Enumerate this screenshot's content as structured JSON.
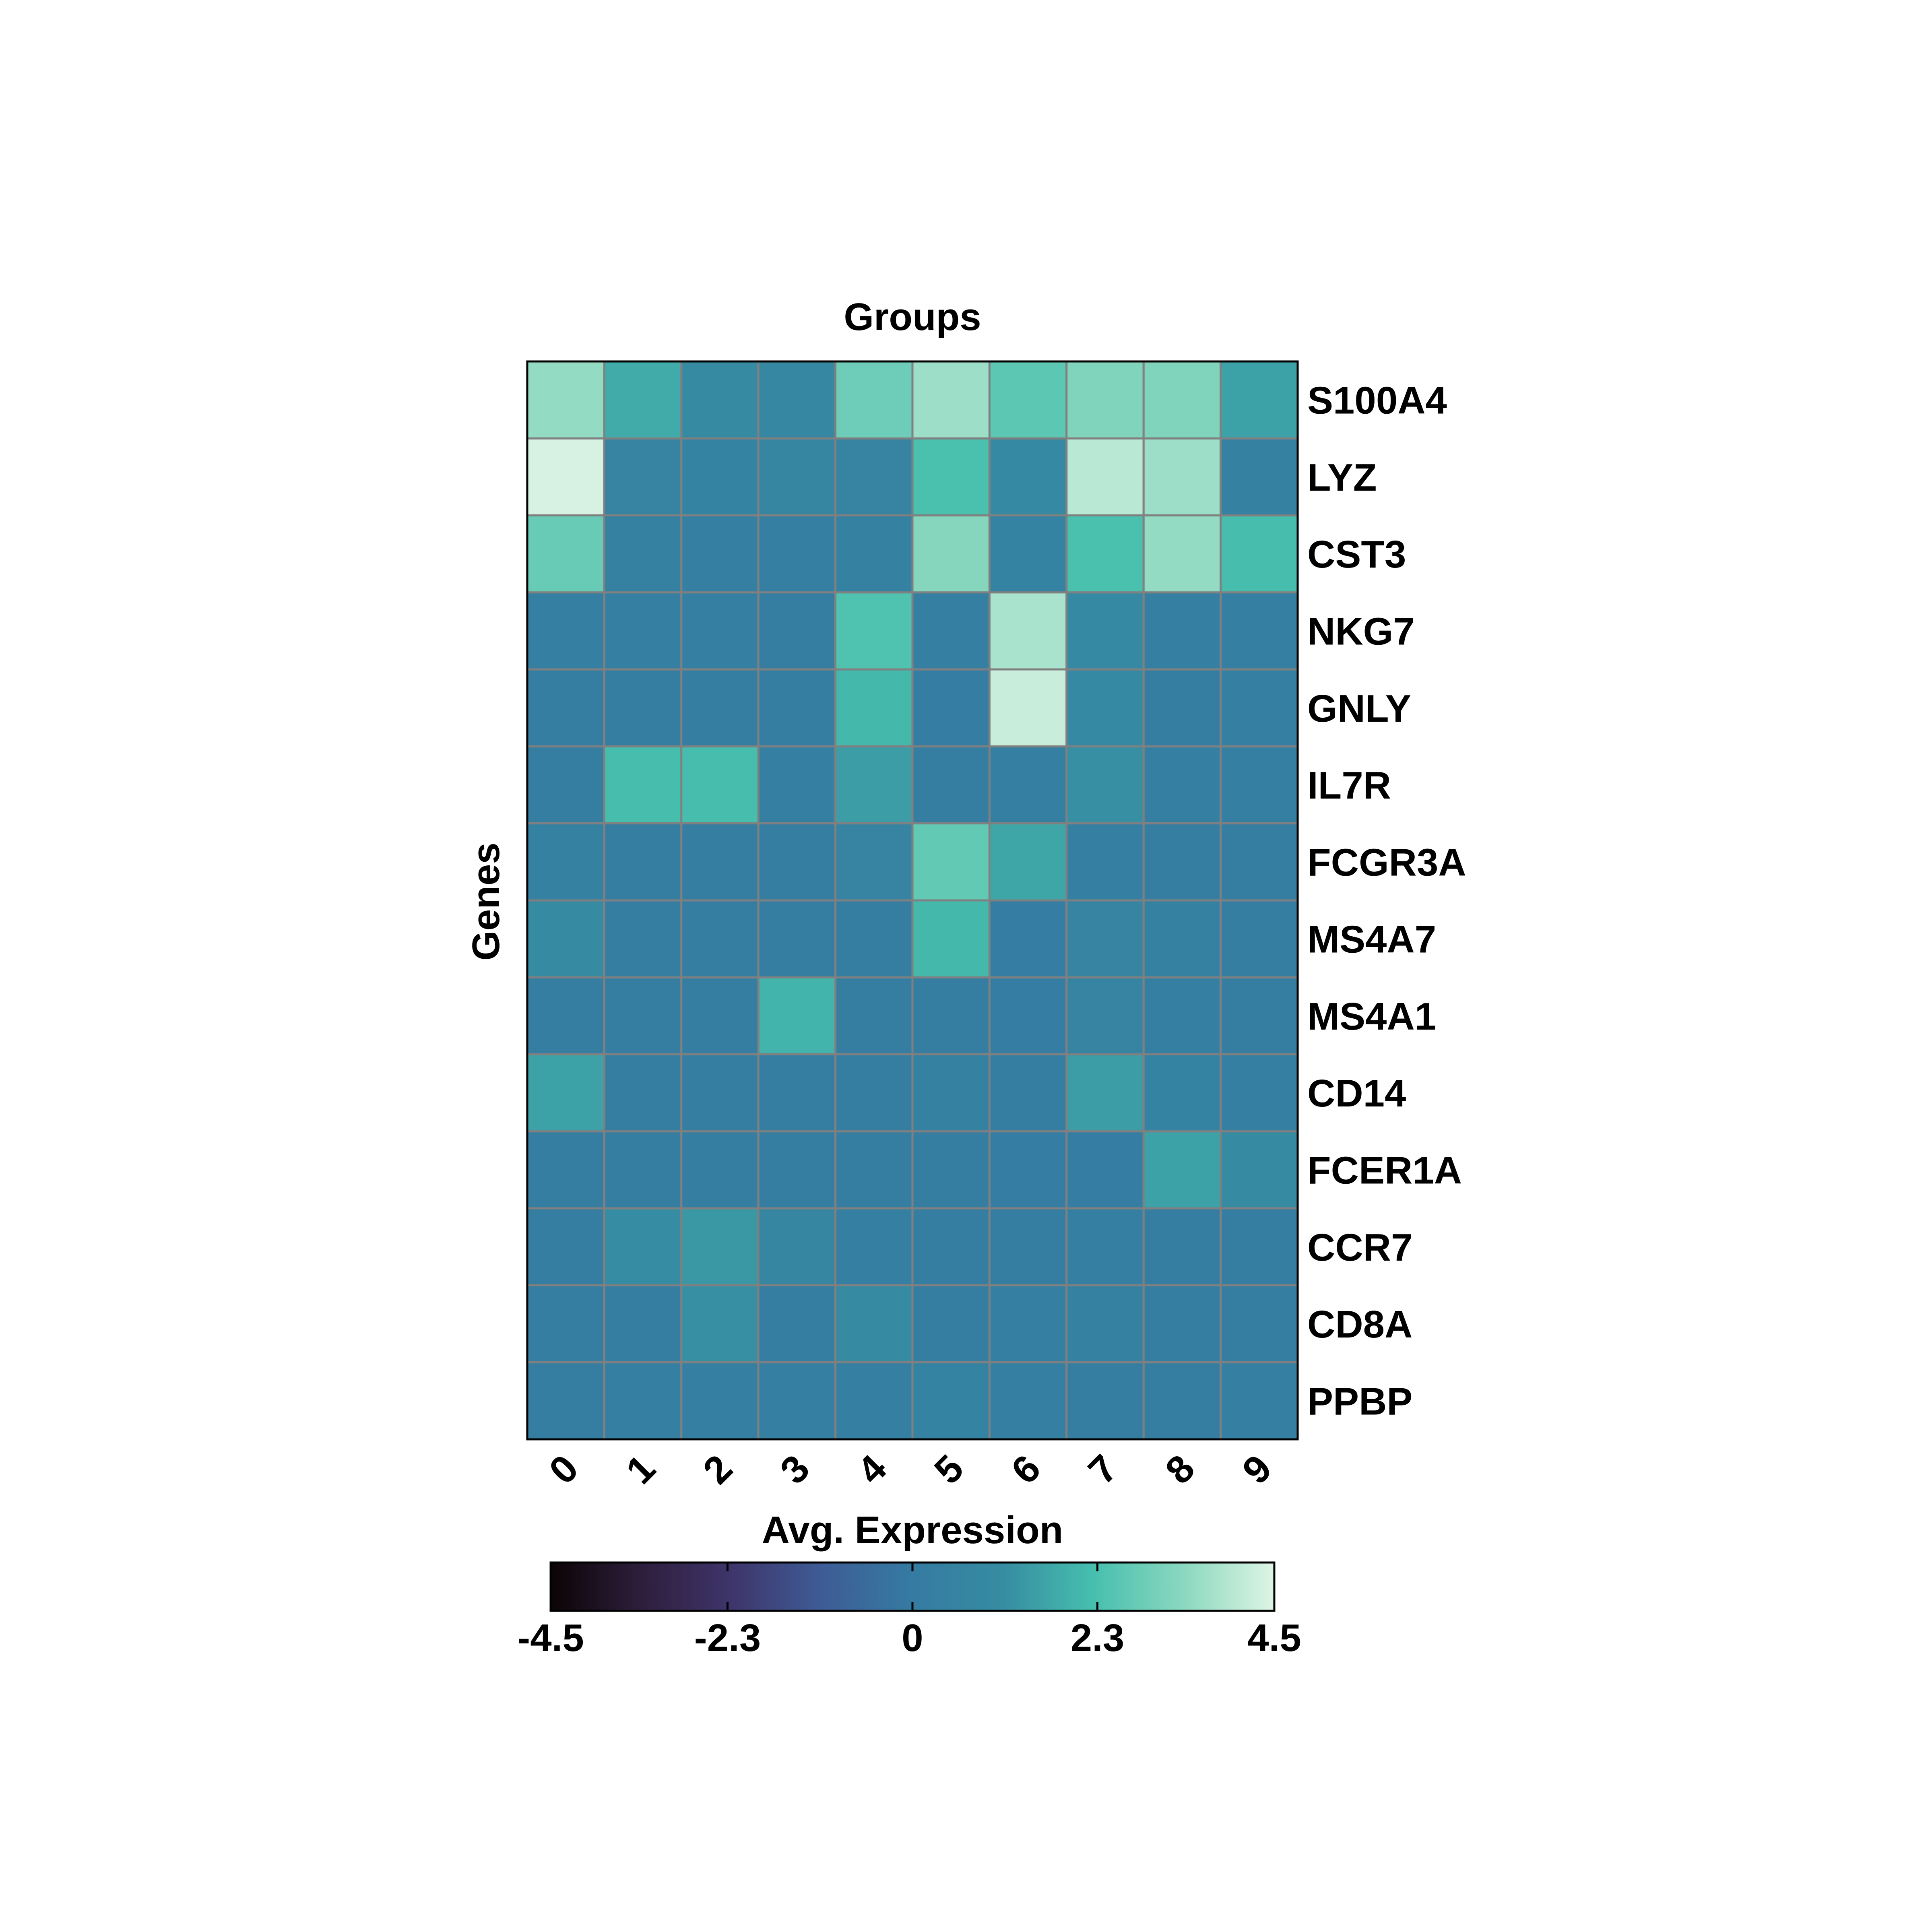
{
  "chart_data": {
    "type": "heatmap",
    "title": "Groups",
    "xlabel": "",
    "ylabel": "Genes",
    "x_categories": [
      "0",
      "1",
      "2",
      "3",
      "4",
      "5",
      "6",
      "7",
      "8",
      "9"
    ],
    "y_categories": [
      "S100A4",
      "LYZ",
      "CST3",
      "NKG7",
      "GNLY",
      "IL7R",
      "FCGR3A",
      "MS4A7",
      "MS4A1",
      "CD14",
      "FCER1A",
      "CCR7",
      "CD8A",
      "PPBP"
    ],
    "values": [
      [
        3.5,
        1.8,
        1.0,
        0.8,
        2.9,
        3.6,
        2.6,
        3.2,
        3.2,
        1.6
      ],
      [
        4.4,
        0.6,
        0.5,
        0.7,
        0.6,
        2.3,
        0.9,
        4.0,
        3.6,
        0.4
      ],
      [
        2.8,
        0.4,
        0.3,
        0.3,
        0.4,
        3.3,
        0.5,
        2.3,
        3.5,
        2.2
      ],
      [
        0.3,
        0.3,
        0.3,
        0.2,
        2.4,
        0.3,
        3.8,
        0.9,
        0.3,
        0.3
      ],
      [
        0.2,
        0.2,
        0.2,
        0.2,
        2.1,
        0.1,
        4.2,
        0.9,
        0.2,
        0.3
      ],
      [
        0.2,
        2.2,
        2.2,
        0.3,
        1.5,
        0.2,
        0.3,
        1.2,
        0.3,
        0.3
      ],
      [
        0.4,
        0.2,
        0.2,
        0.2,
        0.6,
        2.7,
        1.7,
        0.3,
        0.2,
        0.2
      ],
      [
        1.0,
        0.2,
        0.2,
        0.2,
        0.2,
        2.1,
        0.1,
        0.6,
        0.4,
        0.2
      ],
      [
        0.2,
        0.2,
        0.2,
        2.0,
        0.2,
        0.2,
        0.1,
        0.6,
        0.3,
        0.2
      ],
      [
        1.6,
        0.2,
        0.2,
        0.2,
        0.2,
        0.4,
        0.2,
        1.5,
        0.5,
        0.3
      ],
      [
        0.2,
        0.2,
        0.2,
        0.2,
        0.2,
        0.2,
        0.1,
        0.1,
        1.6,
        1.0
      ],
      [
        0.2,
        1.1,
        1.4,
        0.7,
        0.3,
        0.2,
        0.2,
        0.3,
        0.2,
        0.2
      ],
      [
        0.2,
        0.2,
        1.2,
        0.2,
        1.0,
        0.2,
        0.3,
        0.4,
        0.2,
        0.2
      ],
      [
        0.2,
        0.3,
        0.3,
        0.3,
        0.3,
        0.5,
        0.3,
        0.2,
        0.2,
        0.3
      ]
    ],
    "colorbar": {
      "label": "Avg. Expression",
      "vmin": -4.5,
      "vmax": 4.5,
      "ticks": [
        -4.5,
        -2.3,
        0,
        2.3,
        4.5
      ],
      "tick_labels": [
        "-4.5",
        "-2.3",
        "0",
        "2.3",
        "4.5"
      ],
      "orientation": "horizontal",
      "placement": "bottom",
      "colormap": [
        "#0b0405",
        "#2e1e3c",
        "#3e356b",
        "#3e5c96",
        "#357ba2",
        "#368ca2",
        "#47bfae",
        "#8bd8bf",
        "#def5e5"
      ]
    },
    "grid": true,
    "cell_border_color": "#808080",
    "x_tick_rotation": "-45"
  }
}
